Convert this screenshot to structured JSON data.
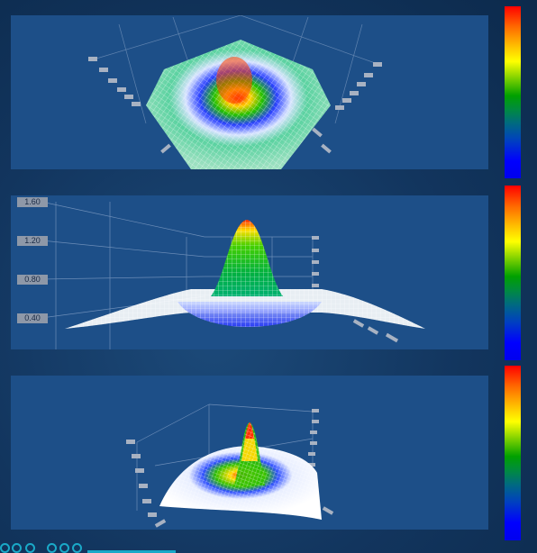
{
  "views": [
    {
      "name": "top",
      "tick_labels": []
    },
    {
      "name": "front",
      "tick_labels": [
        "1.60",
        "1.20",
        "0.80",
        "0.40"
      ]
    },
    {
      "name": "perspective",
      "tick_labels": []
    }
  ],
  "colorbar": {
    "colors": [
      "#ff0000",
      "#ffff00",
      "#00a000",
      "#0040c0",
      "#0000ff"
    ]
  },
  "toolbar": {
    "icons": [
      "rotate-icon",
      "zoom-icon",
      "pan-icon",
      "reset-icon",
      "view-icon",
      "settings-icon"
    ]
  }
}
